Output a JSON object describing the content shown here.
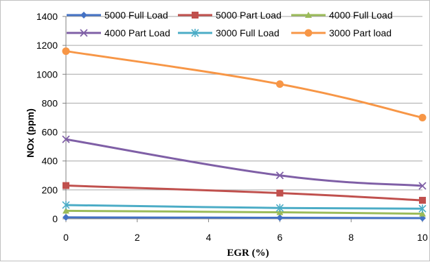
{
  "chart_data": {
    "type": "line",
    "title": "",
    "xlabel": "EGR (%)",
    "ylabel": "NOx (ppm)",
    "xlim": [
      0,
      10
    ],
    "ylim": [
      0,
      1400
    ],
    "x_ticks": [
      "0",
      "2",
      "4",
      "6",
      "8",
      "10"
    ],
    "y_ticks": [
      "0",
      "200",
      "400",
      "600",
      "800",
      "1000",
      "1200",
      "1400"
    ],
    "grid": "horizontal",
    "legend_position": "top",
    "x": [
      0,
      6,
      10
    ],
    "series": [
      {
        "name": "5000 Full Load",
        "color": "#4472c4",
        "marker": "diamond",
        "values": [
          10,
          7,
          5
        ]
      },
      {
        "name": "5000 Part Load",
        "color": "#c0504d",
        "marker": "square",
        "values": [
          230,
          178,
          128
        ]
      },
      {
        "name": "4000 Full Load",
        "color": "#9bbb59",
        "marker": "triangle",
        "values": [
          55,
          45,
          35
        ]
      },
      {
        "name": "4000 Part Load",
        "color": "#7f5fa6",
        "marker": "x",
        "values": [
          550,
          300,
          228
        ]
      },
      {
        "name": "3000 Full Load",
        "color": "#4bacc6",
        "marker": "star",
        "values": [
          95,
          75,
          70
        ]
      },
      {
        "name": "3000 Part load",
        "color": "#f79646",
        "marker": "circle",
        "values": [
          1160,
          932,
          700
        ]
      }
    ]
  }
}
